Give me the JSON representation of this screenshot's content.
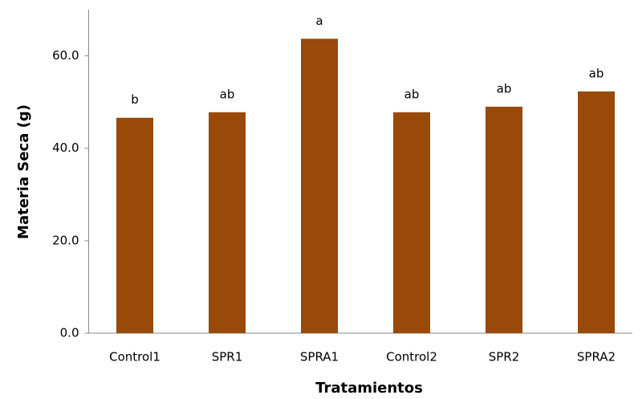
{
  "chart_data": {
    "type": "bar",
    "x_label": "Tratamientos",
    "y_label": "Materia Seca (g)",
    "categories": [
      "Control1",
      "SPR1",
      "SPRA1",
      "Control2",
      "SPR2",
      "SPRA2"
    ],
    "values": [
      46.6,
      47.8,
      63.7,
      47.8,
      49.0,
      52.3
    ],
    "annotations": [
      "b",
      "ab",
      "a",
      "ab",
      "ab",
      "ab"
    ],
    "color": "#994a08",
    "ylim": [
      0,
      70
    ],
    "yticks": [
      {
        "value": 0,
        "label": "0.0"
      },
      {
        "value": 20,
        "label": "20.0"
      },
      {
        "value": 40,
        "label": "40.0"
      },
      {
        "value": 60,
        "label": "60.0"
      }
    ],
    "grid": false
  }
}
